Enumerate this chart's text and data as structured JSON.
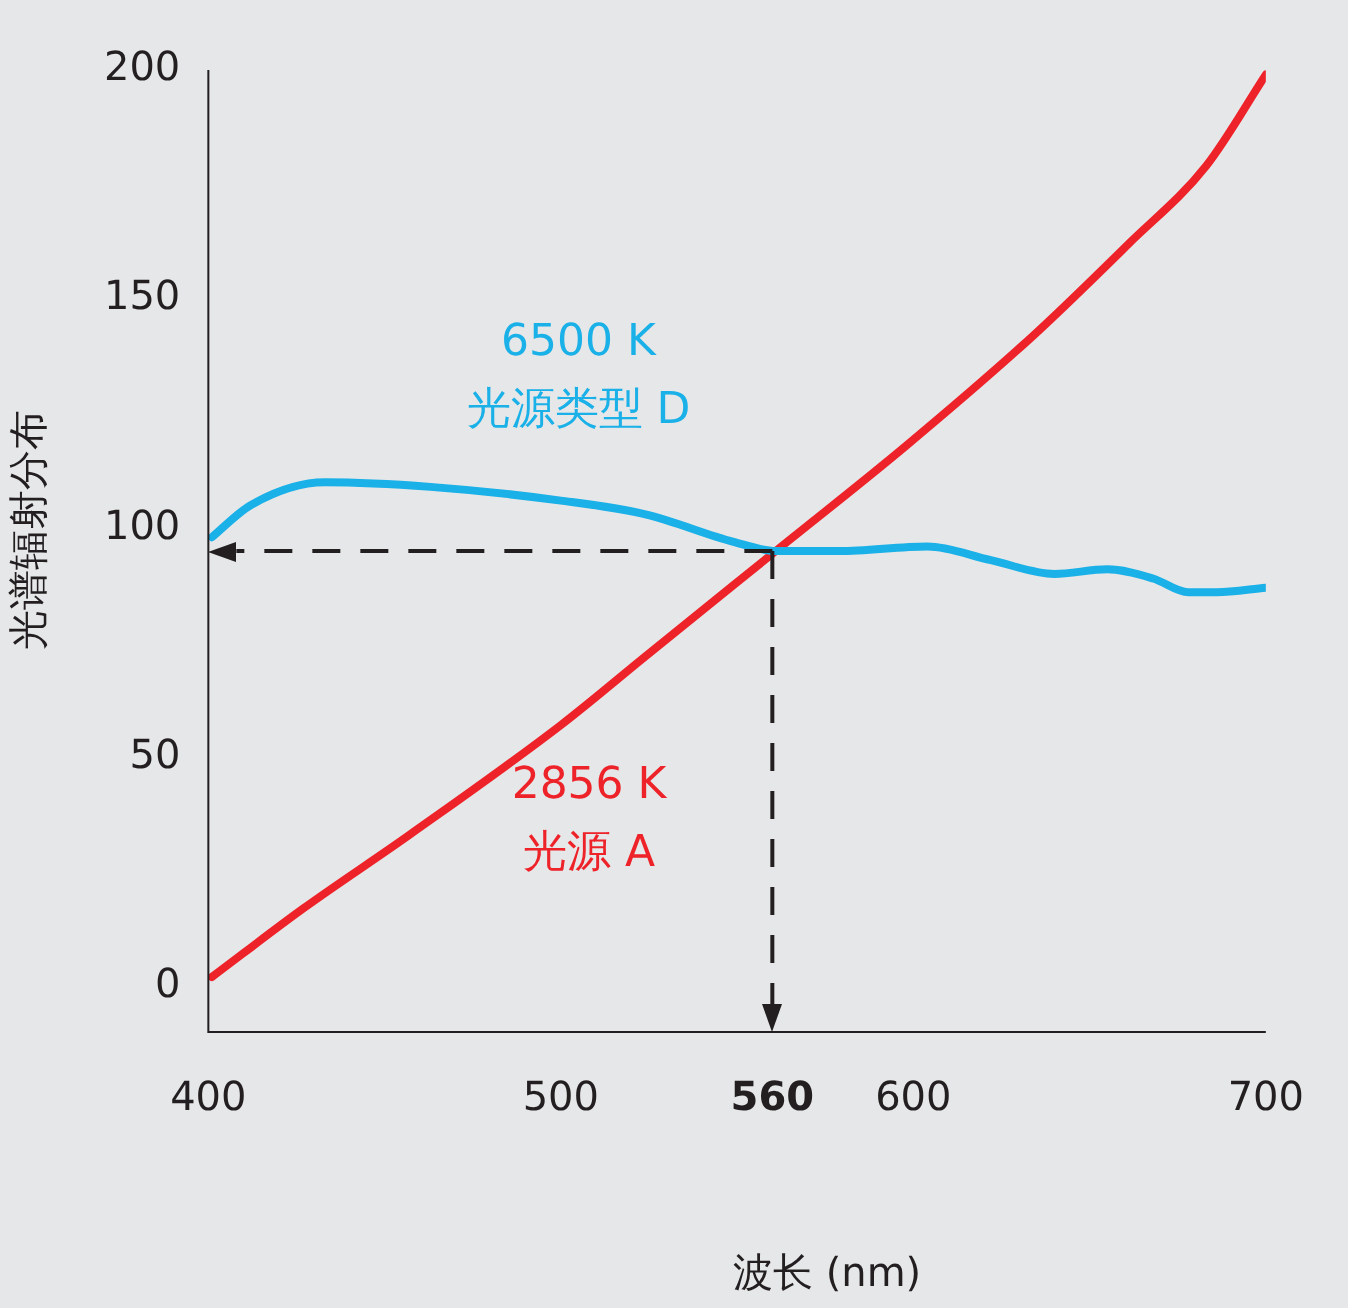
{
  "chart_data": {
    "type": "line",
    "xlabel": "波长 (nm)",
    "ylabel": "光谱辐射分布",
    "xlim": [
      400,
      700
    ],
    "xticks": [
      400,
      500,
      {
        "value": 560,
        "label": "560"
      },
      600,
      700
    ],
    "ylim": [
      -10,
      200
    ],
    "yticks": [
      0,
      50,
      100,
      150,
      200
    ],
    "grid": false,
    "legend": false,
    "marker": "none",
    "line_style": "solid",
    "series": [
      {
        "name": "6500 K\n光源类型 D",
        "color": "#1ab0e8",
        "x": [
          401,
          412,
          433,
          463,
          500,
          524,
          549,
          561,
          579,
          604,
          622,
          640,
          655,
          668,
          678,
          686,
          700
        ],
        "values": [
          98,
          105,
          110,
          109,
          106,
          103,
          97,
          95,
          95,
          96,
          93,
          90,
          91,
          89,
          86,
          86,
          87
        ]
      },
      {
        "name": "2856 K\n光源 A",
        "color": "#ee2229",
        "x": [
          401,
          427,
          457,
          500,
          524,
          561,
          598,
          634,
          661,
          683,
          700
        ],
        "values": [
          2,
          17,
          33,
          57,
          72,
          95,
          118,
          142,
          162,
          179,
          199
        ]
      }
    ],
    "ref_lines": [
      {
        "axis": "x",
        "value": 560,
        "line_style": "dashed",
        "color": "#231f20"
      },
      {
        "axis": "y",
        "value": 95,
        "line_style": "dashed",
        "color": "#231f20"
      }
    ]
  }
}
